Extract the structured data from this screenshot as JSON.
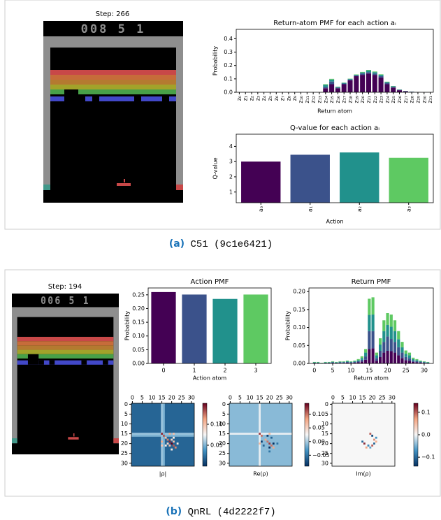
{
  "panels": [
    {
      "label": "(a)",
      "caption": "C51 (9c1e6421)",
      "step": "Step: 266",
      "score": "008 5 1",
      "chart_data": [
        {
          "type": "stacked_bar",
          "title": "Return-atom PMF for each action aᵢ",
          "xlabel": "Return atom",
          "ylabel": "Probability",
          "categories": [
            "z₀",
            "z₁",
            "z₂",
            "z₃",
            "z₄",
            "z₅",
            "z₆",
            "z₇",
            "z₈",
            "z₉",
            "z₁₀",
            "z₁₁",
            "z₁₂",
            "z₁₃",
            "z₁₄",
            "z₁₅",
            "z₁₆",
            "z₁₇",
            "z₁₈",
            "z₁₉",
            "z₂₀",
            "z₂₁",
            "z₂₂",
            "z₂₃",
            "z₂₄",
            "z₂₅",
            "z₂₆",
            "z₂₇",
            "z₂₈",
            "z₂₉",
            "z₃₀",
            "z₃₁"
          ],
          "xtick_rotation": 90,
          "series": [
            {
              "color": "#440154",
              "values": [
                0,
                0,
                0,
                0,
                0,
                0,
                0,
                0,
                0,
                0,
                0,
                0,
                0,
                0,
                0.03,
                0.06,
                0.03,
                0.06,
                0.09,
                0.12,
                0.13,
                0.14,
                0.13,
                0.11,
                0.06,
                0.035,
                0.015,
                0.007,
                0.003,
                0.001,
                0,
                0
              ]
            },
            {
              "color": "#3b528b",
              "values": [
                0,
                0,
                0,
                0,
                0,
                0,
                0,
                0,
                0,
                0,
                0,
                0,
                0,
                0,
                0.01,
                0.02,
                0.005,
                0.005,
                0.005,
                0.005,
                0.01,
                0.01,
                0.01,
                0.01,
                0.01,
                0.005,
                0.003,
                0.002,
                0.001,
                0,
                0,
                0
              ]
            },
            {
              "color": "#21918c",
              "values": [
                0,
                0,
                0,
                0,
                0,
                0,
                0,
                0,
                0,
                0,
                0,
                0,
                0,
                0,
                0.015,
                0.015,
                0.005,
                0.005,
                0.005,
                0.005,
                0.008,
                0.012,
                0.01,
                0.01,
                0.006,
                0.005,
                0.002,
                0.001,
                0.001,
                0,
                0,
                0
              ]
            },
            {
              "color": "#5ec962",
              "values": [
                0,
                0,
                0,
                0,
                0,
                0,
                0,
                0,
                0,
                0,
                0,
                0,
                0,
                0,
                0.005,
                0.005,
                0.002,
                0.002,
                0.002,
                0.003,
                0.004,
                0.005,
                0.005,
                0.004,
                0.003,
                0.002,
                0.001,
                0,
                0,
                0,
                0,
                0
              ]
            }
          ],
          "ylim": [
            0,
            0.47
          ],
          "yticks": [
            {
              "value": 0,
              "label": "0.0"
            },
            0.1,
            0.2,
            0.3,
            0.4
          ]
        },
        {
          "type": "bar",
          "title": "Q-value for each action aᵢ",
          "xlabel": "Action",
          "ylabel": "Q-value",
          "categories": [
            "a₀",
            "a₁",
            "a₂",
            "a₃"
          ],
          "xtick_rotation": 90,
          "values": [
            3.0,
            3.45,
            3.6,
            3.25
          ],
          "colors": [
            "#440154",
            "#3b528b",
            "#21918c",
            "#5ec962"
          ],
          "ylim": [
            0.3,
            4.8
          ],
          "yticks": [
            1,
            2,
            3,
            4
          ]
        }
      ]
    },
    {
      "label": "(b)",
      "caption": "QnRL (4d2222f7)",
      "step": "Step: 194",
      "score": "006 5 1",
      "chart_data": [
        {
          "type": "bar",
          "title": "Action PMF",
          "xlabel": "Action atom",
          "ylabel": "Probability",
          "categories": [
            "0",
            "1",
            "2",
            "3"
          ],
          "values": [
            0.26,
            0.251,
            0.235,
            0.251
          ],
          "colors": [
            "#440154",
            "#3b528b",
            "#21918c",
            "#5ec962"
          ],
          "ylim": [
            0,
            0.275
          ],
          "yticks": [
            {
              "value": 0,
              "label": "0.00"
            },
            0.05,
            {
              "value": 0.1,
              "label": "0.10"
            },
            0.15,
            {
              "value": 0.2,
              "label": "0.20"
            },
            0.25
          ]
        },
        {
          "type": "stacked_bar",
          "title": "Return PMF",
          "xlabel": "Return atom",
          "ylabel": "Probability",
          "x": [
            0,
            1,
            2,
            3,
            4,
            5,
            6,
            7,
            8,
            9,
            10,
            11,
            12,
            13,
            14,
            15,
            16,
            17,
            18,
            19,
            20,
            21,
            22,
            23,
            24,
            25,
            26,
            27,
            28,
            29,
            30,
            31
          ],
          "xlim": [
            -1.5,
            32.5
          ],
          "xticks": [
            0,
            5,
            10,
            15,
            20,
            25,
            30
          ],
          "series": [
            {
              "color": "#440154",
              "values": [
                0.001,
                0.001,
                0.0005,
                0.001,
                0.001,
                0.0015,
                0.001,
                0.0015,
                0.0015,
                0.002,
                0.0015,
                0.002,
                0.003,
                0.005,
                0.01,
                0.04,
                0.042,
                0.0075,
                0.0175,
                0.03,
                0.035,
                0.034,
                0.03,
                0.0225,
                0.015,
                0.009,
                0.0075,
                0.004,
                0.003,
                0.002,
                0.0015,
                0.001
              ]
            },
            {
              "color": "#3b528b",
              "values": [
                0.001,
                0.001,
                0.0005,
                0.001,
                0.001,
                0.0015,
                0.001,
                0.0015,
                0.0015,
                0.002,
                0.0015,
                0.002,
                0.003,
                0.005,
                0.01,
                0.05,
                0.048,
                0.0075,
                0.0175,
                0.03,
                0.04,
                0.034,
                0.03,
                0.0225,
                0.015,
                0.009,
                0.0075,
                0.004,
                0.003,
                0.002,
                0.0015,
                0.001
              ]
            },
            {
              "color": "#21918c",
              "values": [
                0.001,
                0.001,
                0.0005,
                0.001,
                0.001,
                0.0015,
                0.001,
                0.0015,
                0.0015,
                0.002,
                0.0015,
                0.002,
                0.003,
                0.005,
                0.01,
                0.045,
                0.046,
                0.0075,
                0.0175,
                0.03,
                0.032,
                0.034,
                0.03,
                0.0225,
                0.015,
                0.009,
                0.0075,
                0.004,
                0.003,
                0.002,
                0.0015,
                0.001
              ]
            },
            {
              "color": "#5ec962",
              "values": [
                0.001,
                0.001,
                0.0005,
                0.001,
                0.001,
                0.0015,
                0.001,
                0.0015,
                0.0015,
                0.002,
                0.0015,
                0.002,
                0.003,
                0.005,
                0.01,
                0.045,
                0.048,
                0.0075,
                0.0175,
                0.03,
                0.033,
                0.034,
                0.03,
                0.0225,
                0.015,
                0.009,
                0.0075,
                0.004,
                0.003,
                0.002,
                0.0015,
                0.001
              ]
            }
          ],
          "ylim": [
            0,
            0.21
          ],
          "yticks": [
            {
              "value": 0,
              "label": "0.00"
            },
            0.05,
            {
              "value": 0.1,
              "label": "0.10"
            },
            0.15,
            {
              "value": 0.2,
              "label": "0.20"
            }
          ]
        },
        {
          "type": "heatmap",
          "xlabel": "|ρ|",
          "colormap": "RdBu_r",
          "xlim": [
            -0.5,
            31.5
          ],
          "ylim": [
            31.5,
            -0.5
          ],
          "xticks": [
            0,
            5,
            10,
            15,
            20,
            25,
            30
          ],
          "yticks": [
            0,
            5,
            10,
            15,
            20,
            25,
            30
          ],
          "clim": [
            0,
            0.15
          ],
          "cticks": [
            0.05,
            {
              "value": 0.1,
              "label": "0.10"
            }
          ],
          "background": 0.02,
          "row_bands": [
            [
              15,
              0.055
            ],
            [
              16,
              0.05
            ]
          ],
          "col_bands": [
            [
              15,
              0.055
            ],
            [
              16,
              0.05
            ]
          ],
          "cells": [
            [
              15,
              15,
              0.14
            ],
            [
              16,
              16,
              0.13
            ],
            [
              17,
              17,
              0.1
            ],
            [
              18,
              18,
              0.12
            ],
            [
              19,
              19,
              0.14
            ],
            [
              20,
              20,
              0.15
            ],
            [
              21,
              21,
              0.13
            ],
            [
              22,
              22,
              0.12
            ],
            [
              19,
              21,
              0.1
            ],
            [
              21,
              19,
              0.1
            ],
            [
              20,
              18,
              0.09
            ],
            [
              18,
              20,
              0.09
            ],
            [
              17,
              21,
              0.08
            ],
            [
              21,
              17,
              0.08
            ],
            [
              15,
              19,
              0.11
            ],
            [
              19,
              15,
              0.11
            ],
            [
              15,
              21,
              0.1
            ],
            [
              21,
              15,
              0.1
            ],
            [
              20,
              23,
              0.08
            ],
            [
              23,
              20,
              0.08
            ]
          ]
        },
        {
          "type": "heatmap",
          "xlabel": "Re(ρ)",
          "colormap": "RdBu_r",
          "xlim": [
            -0.5,
            31.5
          ],
          "ylim": [
            31.5,
            -0.5
          ],
          "xticks": [
            0,
            5,
            10,
            15,
            20,
            25,
            30
          ],
          "yticks": [
            0,
            5,
            10,
            15,
            20,
            25,
            30
          ],
          "clim": [
            -0.09,
            0.14
          ],
          "cticks": [
            {
              "value": -0.05,
              "label": "−0.05"
            },
            {
              "value": 0,
              "label": "0.00"
            },
            0.05,
            {
              "value": 0.1,
              "label": "0.10"
            }
          ],
          "background": -0.01,
          "row_bands": [
            [
              15,
              0.02
            ]
          ],
          "col_bands": [
            [
              15,
              0.02
            ]
          ],
          "cells": [
            [
              15,
              15,
              0.12
            ],
            [
              16,
              16,
              0.1
            ],
            [
              18,
              18,
              0.08
            ],
            [
              19,
              19,
              0.1
            ],
            [
              20,
              20,
              0.12
            ],
            [
              21,
              21,
              0.1
            ],
            [
              22,
              22,
              0.08
            ],
            [
              16,
              19,
              -0.08
            ],
            [
              19,
              16,
              -0.08
            ],
            [
              20,
              22,
              -0.09
            ],
            [
              22,
              20,
              -0.09
            ],
            [
              17,
              21,
              -0.06
            ],
            [
              21,
              17,
              -0.06
            ],
            [
              15,
              20,
              0.07
            ],
            [
              20,
              15,
              0.07
            ],
            [
              24,
              20,
              -0.05
            ],
            [
              20,
              24,
              -0.05
            ]
          ]
        },
        {
          "type": "heatmap",
          "xlabel": "Im(ρ)",
          "colormap": "RdBu_r",
          "xlim": [
            -0.5,
            31.5
          ],
          "ylim": [
            31.5,
            -0.5
          ],
          "xticks": [
            0,
            5,
            10,
            15,
            20,
            25,
            30
          ],
          "yticks": [
            0,
            5,
            10,
            15,
            20,
            25,
            30
          ],
          "clim": [
            -0.14,
            0.14
          ],
          "cticks": [
            {
              "value": -0.1,
              "label": "−0.1"
            },
            {
              "value": 0,
              "label": "0.0"
            },
            0.1
          ],
          "background": 0,
          "row_bands": [],
          "col_bands": [],
          "cells": [
            [
              15,
              19,
              0.1
            ],
            [
              19,
              15,
              -0.1
            ],
            [
              16,
              20,
              -0.12
            ],
            [
              20,
              16,
              0.12
            ],
            [
              18,
              21,
              0.08
            ],
            [
              21,
              18,
              -0.08
            ],
            [
              17,
              22,
              -0.07
            ],
            [
              22,
              17,
              0.07
            ],
            [
              19,
              22,
              0.06
            ],
            [
              22,
              19,
              -0.06
            ],
            [
              20,
              21,
              -0.1
            ],
            [
              21,
              20,
              0.1
            ]
          ]
        }
      ]
    }
  ]
}
